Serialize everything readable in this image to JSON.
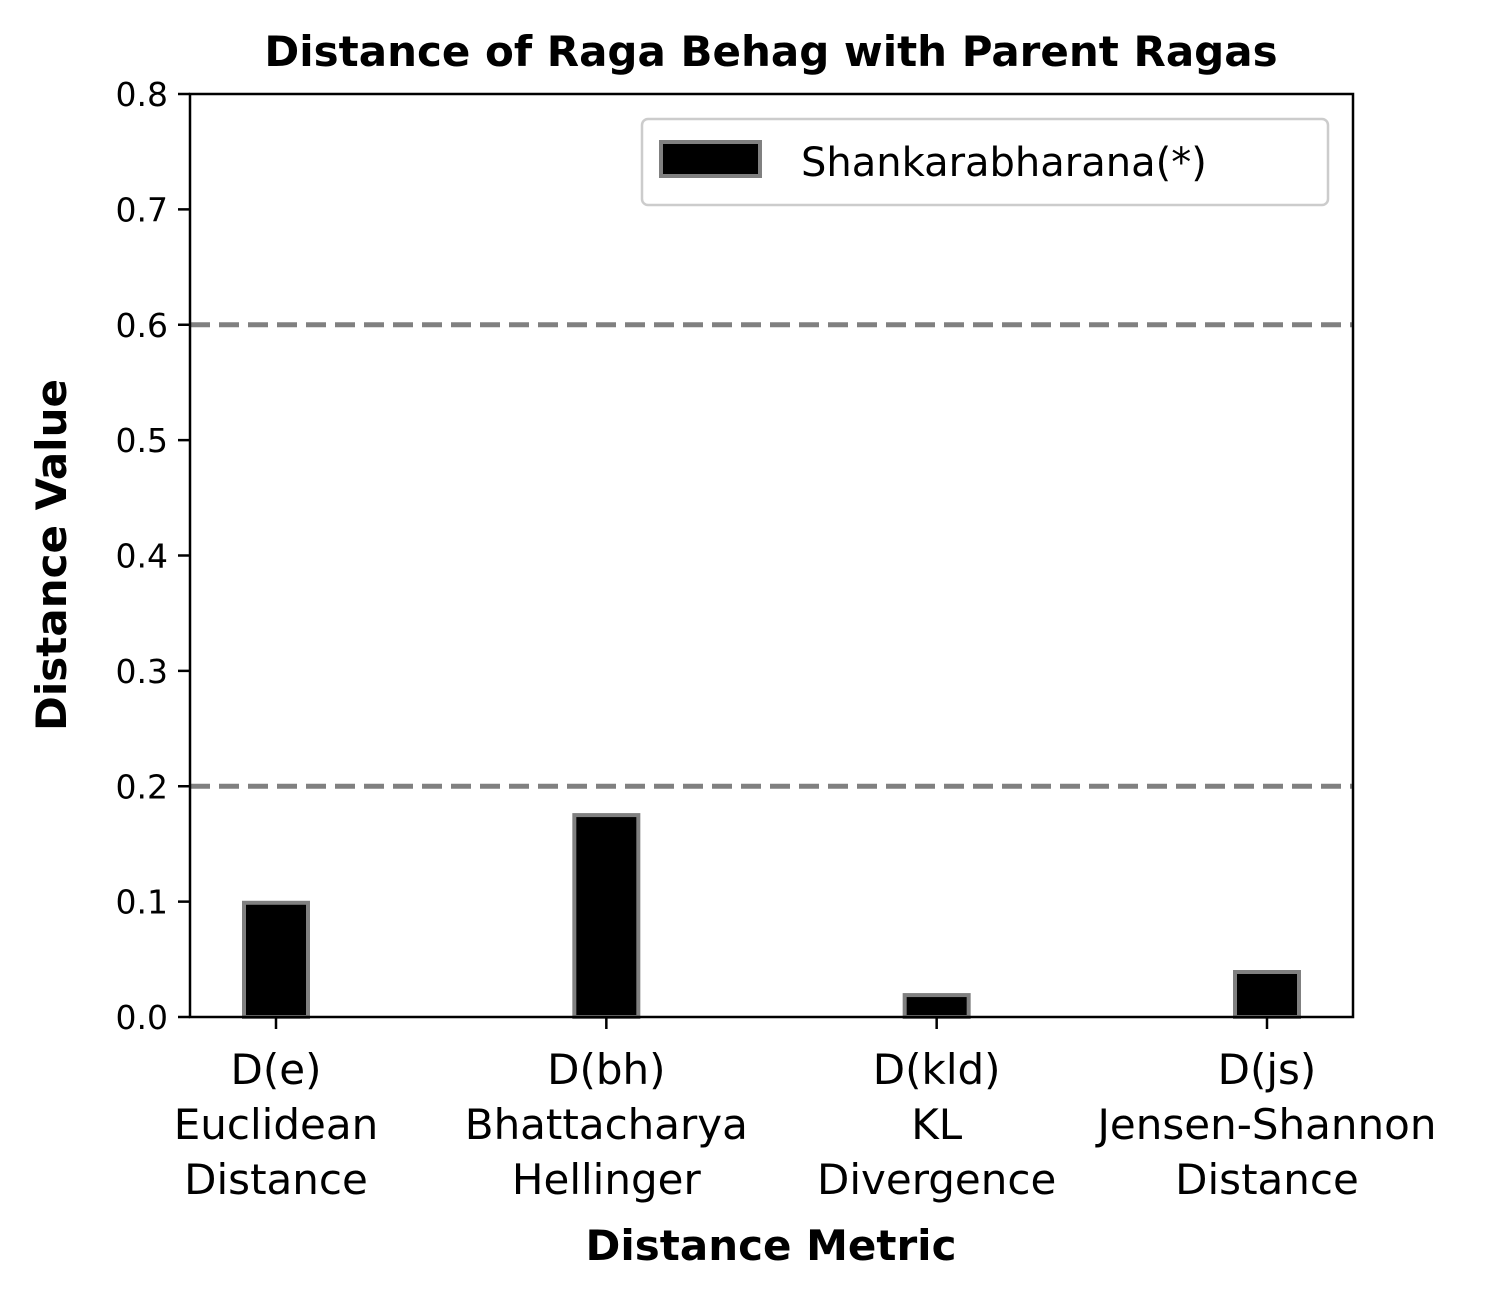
{
  "chart_data": {
    "type": "bar",
    "title": "Distance of Raga Behag with Parent Ragas",
    "xlabel": "Distance Metric",
    "ylabel": "Distance Value",
    "ylim": [
      0,
      0.8
    ],
    "yticks": [
      "0.0",
      "0.1",
      "0.2",
      "0.3",
      "0.4",
      "0.5",
      "0.6",
      "0.7",
      "0.8"
    ],
    "categories": [
      [
        "D(e)",
        "Euclidean",
        "Distance"
      ],
      [
        "D(bh)",
        "Bhattacharya",
        "Hellinger"
      ],
      [
        "D(kld)",
        "KL",
        "Divergence"
      ],
      [
        "D(js)",
        "Jensen-Shannon",
        "Distance"
      ]
    ],
    "series": [
      {
        "name": "Shankarabharana(*)",
        "values": [
          0.099,
          0.175,
          0.019,
          0.039
        ],
        "color": "#000000",
        "edgecolor": "#808080"
      }
    ],
    "reference_lines": [
      {
        "y": 0.2,
        "style": "dashed",
        "color": "#808080"
      },
      {
        "y": 0.6,
        "style": "dashed",
        "color": "#808080"
      }
    ],
    "legend": {
      "position": "top-right"
    },
    "grid": false
  }
}
